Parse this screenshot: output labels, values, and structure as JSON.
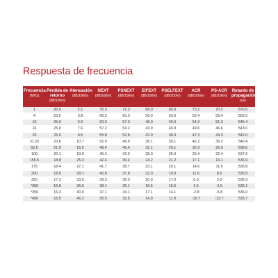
{
  "title": "Respuesta de frecuencia",
  "columns": [
    {
      "name": "Frecuencia",
      "unit": "(MHz)"
    },
    {
      "name": "Pérdida de retorno",
      "unit": "(dB/100m)"
    },
    {
      "name": "Atenuación",
      "unit": "(dB/100m)"
    },
    {
      "name": "NEXT",
      "unit": "(dB/100m)"
    },
    {
      "name": "PSNEXT",
      "unit": "(dB/100m)"
    },
    {
      "name": "EIFEXT",
      "unit": "(dB/100m)"
    },
    {
      "name": "PSELFEXT",
      "unit": "(dB/100m)"
    },
    {
      "name": "ACR",
      "unit": "(dB/100m)"
    },
    {
      "name": "PS-ACR",
      "unit": "(dB/100m)"
    },
    {
      "name": "Retardo de propagación",
      "unit": "(ns)"
    }
  ],
  "rows": [
    [
      "1",
      "20.0",
      "2.1",
      "75.3",
      "72.3",
      "68.0",
      "65.0",
      "73.2",
      "70.2",
      "570.0"
    ],
    [
      "4",
      "23.0",
      "3.8",
      "66.3",
      "63.3",
      "56.0",
      "53.0",
      "62.4",
      "59.4",
      "552.0"
    ],
    [
      "10",
      "25.0",
      "6.0",
      "60.3",
      "57.3",
      "48.0",
      "45.0",
      "54.3",
      "51.3",
      "545.4"
    ],
    [
      "16",
      "25.0",
      "7.6",
      "57.2",
      "54.2",
      "43.9",
      "40.9",
      "49.6",
      "46.6",
      "543.0"
    ],
    [
      "20",
      "25.0",
      "8.5",
      "55.8",
      "52.8",
      "42.0",
      "39.0",
      "47.3",
      "44.3",
      "542.0"
    ],
    [
      "31.25",
      "23.6",
      "10.7",
      "52.9",
      "49.9",
      "38.1",
      "35.1",
      "42.2",
      "39.2",
      "540.4"
    ],
    [
      "62.5",
      "21.5",
      "15.5",
      "48.4",
      "45.4",
      "32.1",
      "29.1",
      "32.9",
      "29.9",
      "538.6"
    ],
    [
      "100",
      "20.1",
      "19.9",
      "45.3",
      "42.3",
      "28.0",
      "25.0",
      "25.4",
      "22.4",
      "537.6"
    ],
    [
      "155.5",
      "18.8",
      "25.3",
      "42.4",
      "39.4",
      "24.2",
      "21.2",
      "17.1",
      "14.1",
      "536.9"
    ],
    [
      "175",
      "18.4",
      "27.1",
      "41.7",
      "38.7",
      "23.1",
      "20.1",
      "14.6",
      "11.6",
      "536.8"
    ],
    [
      "200",
      "18.0",
      "29.1",
      "40.8",
      "37.8",
      "22.0",
      "19.0",
      "11.6",
      "8.6",
      "536.5"
    ],
    [
      "250",
      "17.3",
      "33.0",
      "39.3",
      "36.3",
      "20.0",
      "17.0",
      "6.3",
      "3.3",
      "536.3"
    ],
    [
      "*300",
      "16.8",
      "36.6",
      "38.1",
      "35.1",
      "18.5",
      "15.5",
      "1.5",
      "-1.5",
      "536.1"
    ],
    [
      "*350",
      "16.3",
      "40.0",
      "37.1",
      "34.1",
      "17.1",
      "14.1",
      "-2.8",
      "-5.8",
      "536.0"
    ],
    [
      "*450",
      "15.5",
      "46.2",
      "35.5",
      "32.5",
      "14.9",
      "11.9",
      "-10.7",
      "-13.7",
      "535.7"
    ]
  ]
}
